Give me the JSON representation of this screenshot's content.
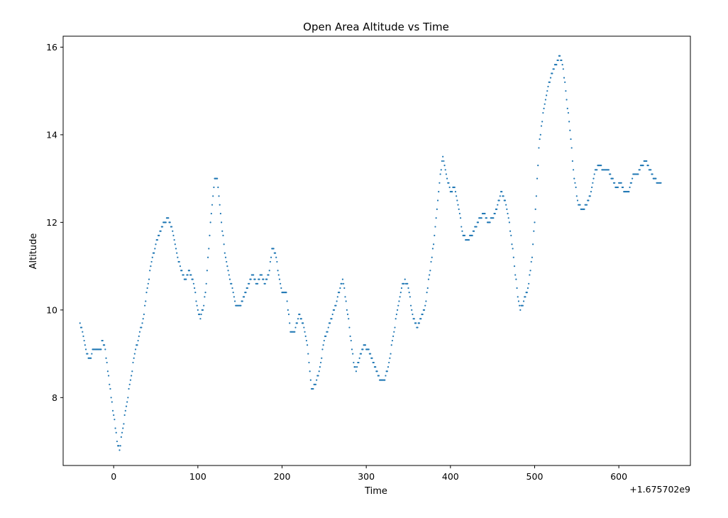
{
  "chart_data": {
    "type": "scatter",
    "title": "Open Area Altitude vs Time",
    "xlabel": "Time",
    "ylabel": "Altitude",
    "x_offset_label": "+1.675702e9",
    "xlim": [
      -60,
      685
    ],
    "ylim": [
      6.45,
      16.25
    ],
    "xticks": [
      0,
      100,
      200,
      300,
      400,
      500,
      600
    ],
    "yticks": [
      8,
      10,
      12,
      14,
      16
    ],
    "xtick_labels": [
      "0",
      "100",
      "200",
      "300",
      "400",
      "500",
      "600"
    ],
    "ytick_labels": [
      "8",
      "10",
      "12",
      "14",
      "16"
    ],
    "grid": false,
    "marker_color": "#1f77b4",
    "anchors": [
      [
        -40,
        9.7
      ],
      [
        -37,
        9.5
      ],
      [
        -33,
        9.1
      ],
      [
        -30,
        8.9
      ],
      [
        -27,
        8.9
      ],
      [
        -25,
        9.1
      ],
      [
        -15,
        9.1
      ],
      [
        -14,
        9.3
      ],
      [
        -10,
        9.1
      ],
      [
        -5,
        8.3
      ],
      [
        0,
        7.6
      ],
      [
        5,
        6.9
      ],
      [
        7,
        6.8
      ],
      [
        10,
        7.2
      ],
      [
        15,
        7.8
      ],
      [
        20,
        8.4
      ],
      [
        25,
        9.0
      ],
      [
        30,
        9.4
      ],
      [
        35,
        9.8
      ],
      [
        40,
        10.5
      ],
      [
        45,
        11.1
      ],
      [
        50,
        11.5
      ],
      [
        55,
        11.8
      ],
      [
        60,
        12.0
      ],
      [
        65,
        12.1
      ],
      [
        70,
        11.8
      ],
      [
        75,
        11.3
      ],
      [
        80,
        10.9
      ],
      [
        85,
        10.7
      ],
      [
        90,
        10.9
      ],
      [
        95,
        10.6
      ],
      [
        100,
        10.0
      ],
      [
        103,
        9.8
      ],
      [
        107,
        10.1
      ],
      [
        110,
        10.6
      ],
      [
        115,
        12.0
      ],
      [
        120,
        13.0
      ],
      [
        123,
        13.0
      ],
      [
        127,
        12.2
      ],
      [
        132,
        11.3
      ],
      [
        137,
        10.8
      ],
      [
        142,
        10.4
      ],
      [
        145,
        10.1
      ],
      [
        150,
        10.1
      ],
      [
        155,
        10.3
      ],
      [
        160,
        10.6
      ],
      [
        165,
        10.8
      ],
      [
        170,
        10.6
      ],
      [
        175,
        10.8
      ],
      [
        180,
        10.6
      ],
      [
        185,
        10.9
      ],
      [
        188,
        11.4
      ],
      [
        192,
        11.3
      ],
      [
        197,
        10.7
      ],
      [
        200,
        10.4
      ],
      [
        205,
        10.4
      ],
      [
        210,
        9.5
      ],
      [
        215,
        9.5
      ],
      [
        220,
        9.9
      ],
      [
        225,
        9.7
      ],
      [
        230,
        9.2
      ],
      [
        235,
        8.2
      ],
      [
        240,
        8.3
      ],
      [
        245,
        8.7
      ],
      [
        250,
        9.3
      ],
      [
        255,
        9.6
      ],
      [
        260,
        9.9
      ],
      [
        265,
        10.2
      ],
      [
        270,
        10.6
      ],
      [
        272,
        10.7
      ],
      [
        276,
        10.2
      ],
      [
        280,
        9.6
      ],
      [
        285,
        8.8
      ],
      [
        288,
        8.6
      ],
      [
        292,
        8.9
      ],
      [
        297,
        9.2
      ],
      [
        302,
        9.1
      ],
      [
        307,
        8.9
      ],
      [
        312,
        8.6
      ],
      [
        317,
        8.4
      ],
      [
        322,
        8.4
      ],
      [
        327,
        8.8
      ],
      [
        332,
        9.4
      ],
      [
        337,
        10.0
      ],
      [
        342,
        10.5
      ],
      [
        346,
        10.7
      ],
      [
        350,
        10.5
      ],
      [
        355,
        9.9
      ],
      [
        360,
        9.6
      ],
      [
        365,
        9.8
      ],
      [
        370,
        10.1
      ],
      [
        375,
        10.8
      ],
      [
        380,
        11.5
      ],
      [
        385,
        12.5
      ],
      [
        388,
        13.1
      ],
      [
        391,
        13.5
      ],
      [
        395,
        13.1
      ],
      [
        400,
        12.7
      ],
      [
        405,
        12.8
      ],
      [
        410,
        12.3
      ],
      [
        415,
        11.7
      ],
      [
        420,
        11.6
      ],
      [
        425,
        11.7
      ],
      [
        430,
        11.9
      ],
      [
        435,
        12.1
      ],
      [
        440,
        12.2
      ],
      [
        445,
        12.0
      ],
      [
        450,
        12.1
      ],
      [
        455,
        12.3
      ],
      [
        460,
        12.7
      ],
      [
        465,
        12.5
      ],
      [
        470,
        12.0
      ],
      [
        475,
        11.2
      ],
      [
        480,
        10.3
      ],
      [
        483,
        10.0
      ],
      [
        487,
        10.2
      ],
      [
        492,
        10.5
      ],
      [
        497,
        11.2
      ],
      [
        502,
        12.6
      ],
      [
        505,
        13.7
      ],
      [
        510,
        14.5
      ],
      [
        515,
        15.0
      ],
      [
        520,
        15.4
      ],
      [
        525,
        15.6
      ],
      [
        530,
        15.8
      ],
      [
        533,
        15.6
      ],
      [
        537,
        15.0
      ],
      [
        542,
        14.1
      ],
      [
        547,
        13.0
      ],
      [
        552,
        12.4
      ],
      [
        557,
        12.3
      ],
      [
        562,
        12.4
      ],
      [
        567,
        12.7
      ],
      [
        572,
        13.2
      ],
      [
        577,
        13.3
      ],
      [
        582,
        13.2
      ],
      [
        587,
        13.2
      ],
      [
        592,
        13.0
      ],
      [
        597,
        12.8
      ],
      [
        602,
        12.9
      ],
      [
        607,
        12.7
      ],
      [
        612,
        12.7
      ],
      [
        617,
        13.1
      ],
      [
        622,
        13.1
      ],
      [
        627,
        13.3
      ],
      [
        632,
        13.4
      ],
      [
        637,
        13.2
      ],
      [
        642,
        13.0
      ],
      [
        646,
        12.9
      ],
      [
        650,
        12.9
      ]
    ]
  }
}
